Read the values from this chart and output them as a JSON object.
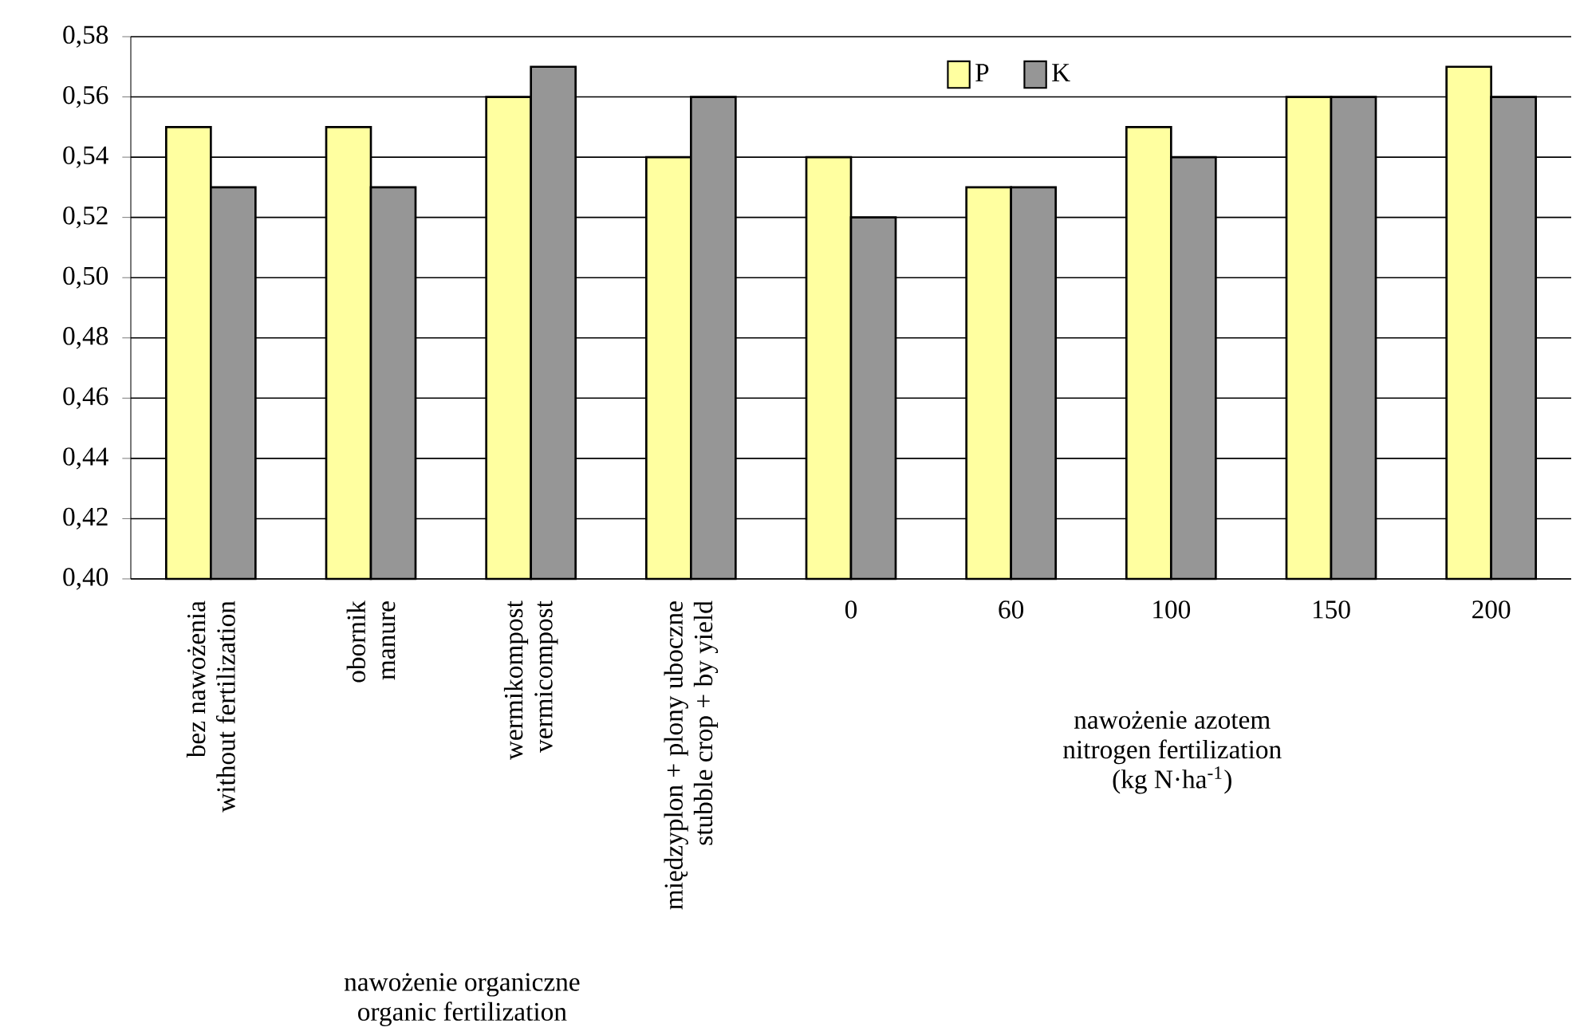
{
  "chart_data": {
    "type": "bar",
    "categories": [
      "bez nawożenia\nwithout fertilization",
      "obornik\nmanure",
      "wermikompost\nvermicompost",
      "międzyplon + plony uboczne\nstubble crop + by yield",
      "0",
      "60",
      "100",
      "150",
      "200"
    ],
    "series": [
      {
        "name": "P",
        "color": "#ffffa0",
        "values": [
          0.55,
          0.55,
          0.56,
          0.54,
          0.54,
          0.53,
          0.55,
          0.56,
          0.57
        ]
      },
      {
        "name": "K",
        "color": "#969696",
        "values": [
          0.53,
          0.53,
          0.57,
          0.56,
          0.52,
          0.53,
          0.54,
          0.56,
          0.56
        ]
      }
    ],
    "ylim": [
      0.4,
      0.58
    ],
    "yticks": [
      {
        "value": 0.4,
        "label": "0,40"
      },
      {
        "value": 0.42,
        "label": "0,42"
      },
      {
        "value": 0.44,
        "label": "0,44"
      },
      {
        "value": 0.46,
        "label": "0,46"
      },
      {
        "value": 0.48,
        "label": "0,48"
      },
      {
        "value": 0.5,
        "label": "0,50"
      },
      {
        "value": 0.52,
        "label": "0,52"
      },
      {
        "value": 0.54,
        "label": "0,54"
      },
      {
        "value": 0.56,
        "label": "0,56"
      },
      {
        "value": 0.58,
        "label": "0,58"
      }
    ],
    "grid": "y",
    "legend": "top",
    "annotations": [
      "nawożenie organiczne\norganic fertilization",
      "nawożenie azotem\nnitrogen fertilization\n(kg N·ha$^{-1}$)"
    ]
  }
}
